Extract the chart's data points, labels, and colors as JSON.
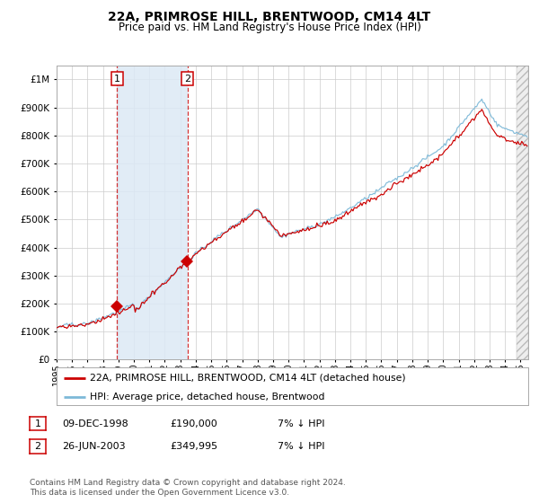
{
  "title": "22A, PRIMROSE HILL, BRENTWOOD, CM14 4LT",
  "subtitle": "Price paid vs. HM Land Registry's House Price Index (HPI)",
  "legend_line1": "22A, PRIMROSE HILL, BRENTWOOD, CM14 4LT (detached house)",
  "legend_line2": "HPI: Average price, detached house, Brentwood",
  "sale1_date": "09-DEC-1998",
  "sale1_price": 190000,
  "sale2_date": "26-JUN-2003",
  "sale2_price": 349995,
  "footer": "Contains HM Land Registry data © Crown copyright and database right 2024.\nThis data is licensed under the Open Government Licence v3.0.",
  "hpi_color": "#7db9d8",
  "price_color": "#cc0000",
  "highlight_fill": "#dce9f5",
  "grid_color": "#cccccc",
  "bg_color": "#ffffff",
  "ylim": [
    0,
    1050000
  ],
  "xstart": 1995.0,
  "xend": 2025.5,
  "sale1_t": 1998.917,
  "sale2_t": 2003.458
}
